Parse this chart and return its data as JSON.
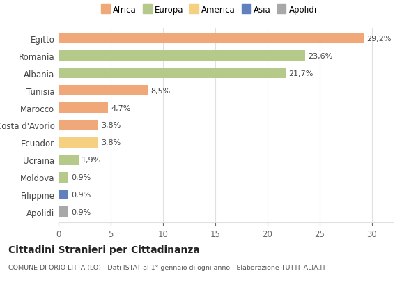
{
  "categories": [
    "Egitto",
    "Romania",
    "Albania",
    "Tunisia",
    "Marocco",
    "Costa d'Avorio",
    "Ecuador",
    "Ucraina",
    "Moldova",
    "Filippine",
    "Apolidi"
  ],
  "values": [
    29.2,
    23.6,
    21.7,
    8.5,
    4.7,
    3.8,
    3.8,
    1.9,
    0.9,
    0.9,
    0.9
  ],
  "labels": [
    "29,2%",
    "23,6%",
    "21,7%",
    "8,5%",
    "4,7%",
    "3,8%",
    "3,8%",
    "1,9%",
    "0,9%",
    "0,9%",
    "0,9%"
  ],
  "colors": [
    "#f0a878",
    "#b5c98a",
    "#b5c98a",
    "#f0a878",
    "#f0a878",
    "#f0a878",
    "#f5d080",
    "#b5c98a",
    "#b5c98a",
    "#6080c0",
    "#a8a8a8"
  ],
  "legend": {
    "labels": [
      "Africa",
      "Europa",
      "America",
      "Asia",
      "Apolidi"
    ],
    "colors": [
      "#f0a878",
      "#b5c98a",
      "#f5d080",
      "#6080c0",
      "#a8a8a8"
    ]
  },
  "title": "Cittadini Stranieri per Cittadinanza",
  "subtitle": "COMUNE DI ORIO LITTA (LO) - Dati ISTAT al 1° gennaio di ogni anno - Elaborazione TUTTITALIA.IT",
  "xlim": [
    0,
    32
  ],
  "xticks": [
    0,
    5,
    10,
    15,
    20,
    25,
    30
  ],
  "background_color": "#ffffff",
  "bar_height": 0.6,
  "grid_color": "#e0e0e0"
}
